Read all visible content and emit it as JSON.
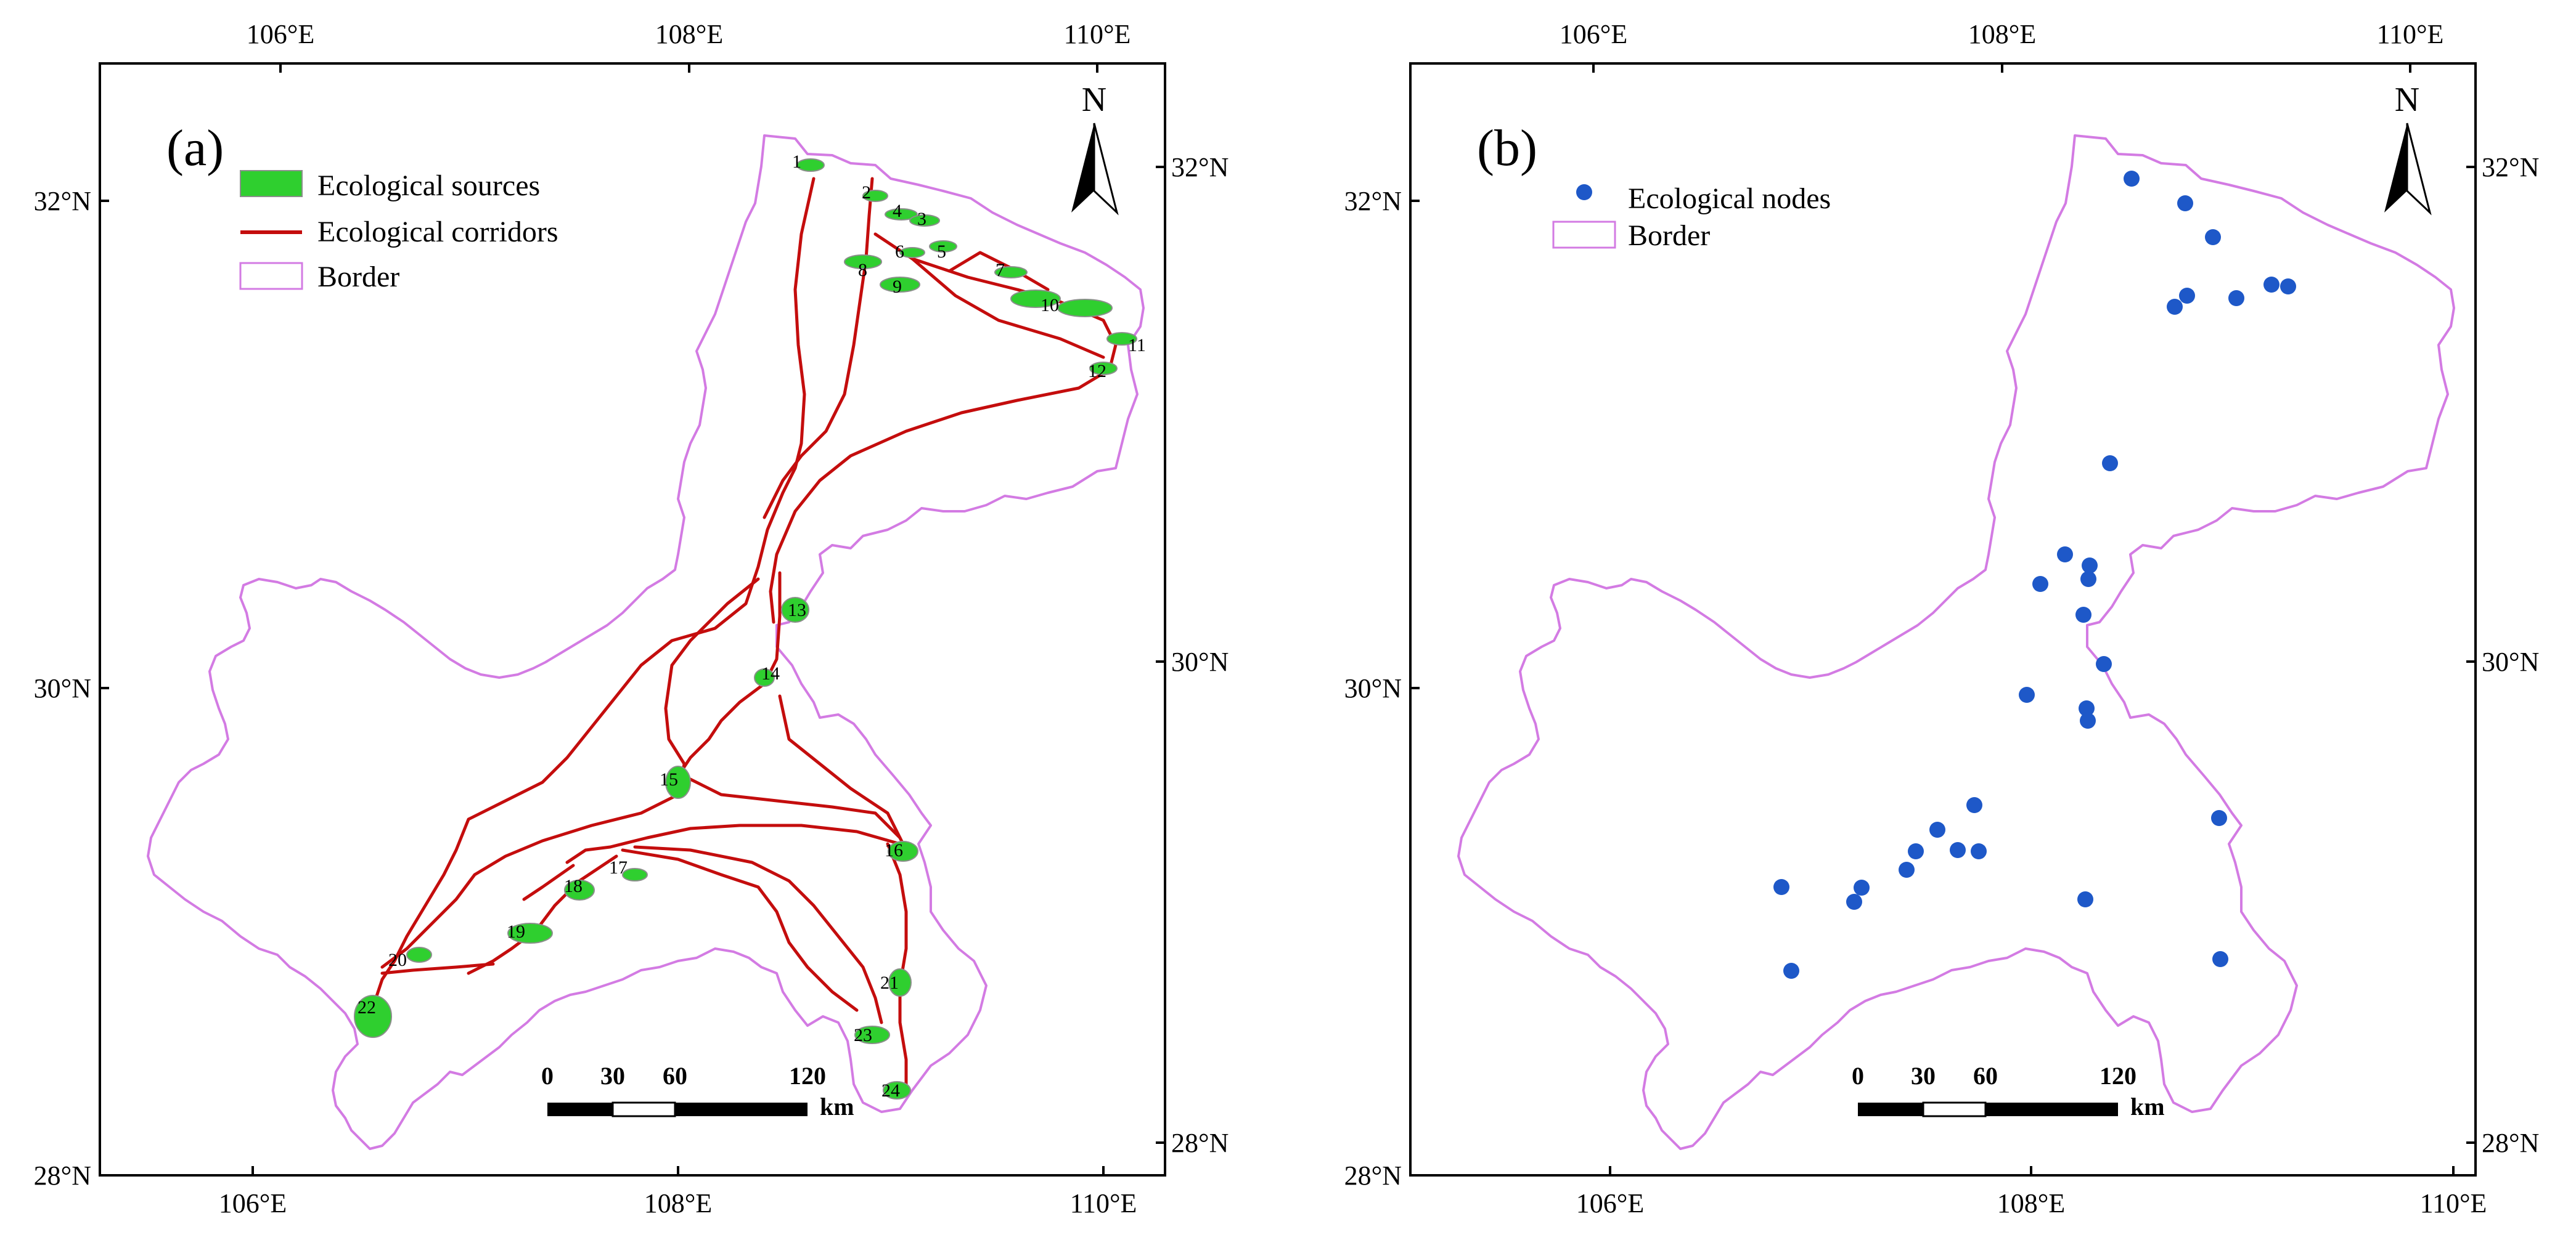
{
  "panels": [
    {
      "id": "a",
      "label": "(a)",
      "top_ticks": [
        "106°E",
        "108°E",
        "110°E"
      ],
      "bottom_ticks": [
        "106°E",
        "108°E",
        "110°E"
      ],
      "left_ticks": [
        "32°N",
        "30°N",
        "28°N"
      ],
      "right_ticks": [
        "32°N",
        "30°N",
        "28°N"
      ],
      "legend": [
        "Ecological sources",
        "Ecological corridors",
        "Border"
      ],
      "north": "N",
      "scale": {
        "labels": [
          "0",
          "30",
          "60",
          "120"
        ],
        "unit": "km"
      },
      "source_ids": [
        "1",
        "2",
        "3",
        "4",
        "5",
        "6",
        "7",
        "8",
        "9",
        "10",
        "11",
        "12",
        "13",
        "14",
        "15",
        "16",
        "17",
        "18",
        "19",
        "20",
        "21",
        "22",
        "23",
        "24"
      ]
    },
    {
      "id": "b",
      "label": "(b)",
      "top_ticks": [
        "106°E",
        "108°E",
        "110°E"
      ],
      "bottom_ticks": [
        "106°E",
        "108°E",
        "110°E"
      ],
      "left_ticks": [
        "32°N",
        "30°N",
        "28°N"
      ],
      "right_ticks": [
        "32°N",
        "30°N",
        "28°N"
      ],
      "legend": [
        "Ecological nodes",
        "Border"
      ],
      "north": "N",
      "scale": {
        "labels": [
          "0",
          "30",
          "60",
          "120"
        ],
        "unit": "km"
      }
    }
  ],
  "colors": {
    "border": "#d37be3",
    "corridor": "#c40d0d",
    "source": "#2fcf2f",
    "node": "#1e58c8"
  }
}
